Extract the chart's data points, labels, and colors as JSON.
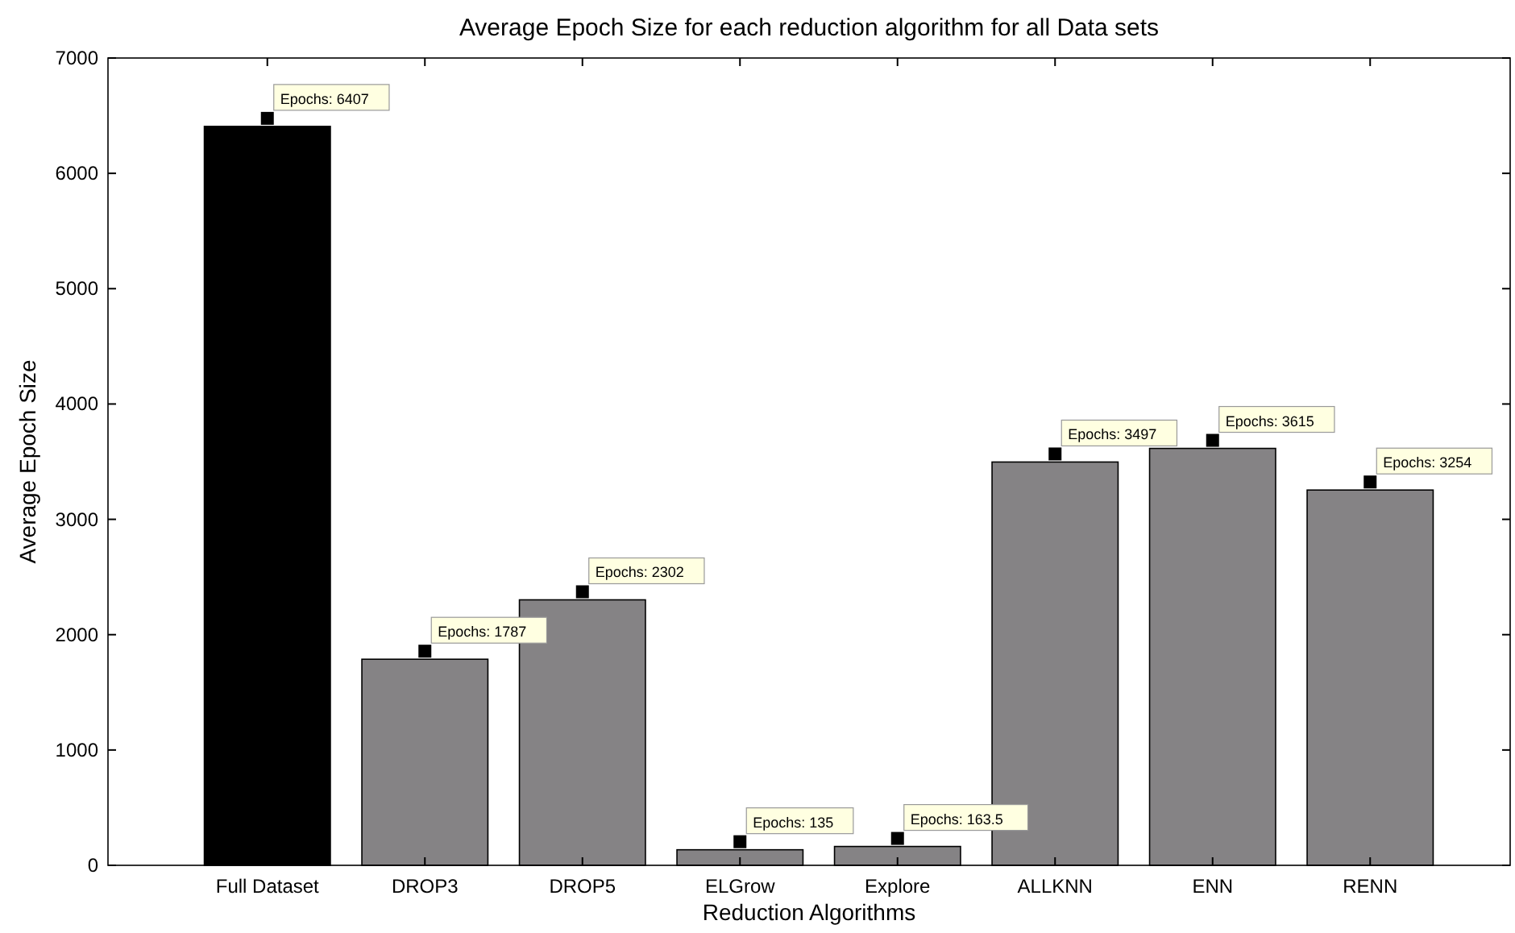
{
  "chart_data": {
    "type": "bar",
    "title": "Average Epoch Size for each reduction algorithm for all Data sets",
    "xlabel": "Reduction Algorithms",
    "ylabel": "Average Epoch Size",
    "categories": [
      "Full Dataset",
      "DROP3",
      "DROP5",
      "ELGrow",
      "Explore",
      "ALLKNN",
      "ENN",
      "RENN"
    ],
    "values": [
      6407,
      1787,
      2302,
      135,
      163.5,
      3497,
      3615,
      3254
    ],
    "colors": [
      "#000000",
      "#858385",
      "#858385",
      "#858385",
      "#858385",
      "#858385",
      "#858385",
      "#858385"
    ],
    "value_labels": [
      "Epochs: 6407",
      "Epochs: 1787",
      "Epochs: 2302",
      "Epochs: 135",
      "Epochs: 163.5",
      "Epochs: 3497",
      "Epochs: 3615",
      "Epochs: 3254"
    ],
    "ylim": [
      0,
      7000
    ],
    "yticks": [
      0,
      1000,
      2000,
      3000,
      4000,
      5000,
      6000,
      7000
    ],
    "grid": false
  }
}
